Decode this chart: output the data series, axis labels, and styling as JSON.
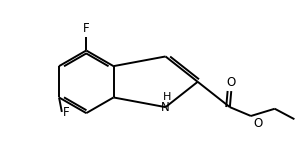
{
  "bg_color": "#ffffff",
  "line_color": "#000000",
  "lw": 1.4,
  "fs": 8.5,
  "xlim": [
    0,
    1.05
  ],
  "ylim": [
    0,
    1.0
  ],
  "figsize": [
    2.96,
    1.62
  ],
  "dpi": 100
}
